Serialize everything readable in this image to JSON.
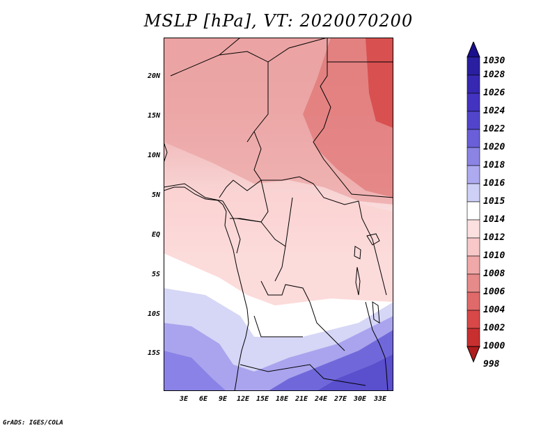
{
  "title": "MSLP [hPa], VT: 2020070200",
  "footer": "GrADS: IGES/COLA",
  "lat_labels": [
    "20N",
    "15N",
    "10N",
    "5N",
    "EQ",
    "5S",
    "10S",
    "15S"
  ],
  "lon_labels": [
    "3E",
    "6E",
    "9E",
    "12E",
    "15E",
    "18E",
    "21E",
    "24E",
    "27E",
    "30E",
    "33E"
  ],
  "colorbar": {
    "levels": [
      "1030",
      "1028",
      "1026",
      "1024",
      "1022",
      "1020",
      "1018",
      "1016",
      "1015",
      "1014",
      "1012",
      "1010",
      "1008",
      "1006",
      "1004",
      "1002",
      "1000",
      "998"
    ],
    "colors": [
      "#1a0f8c",
      "#2a1fa0",
      "#3628b0",
      "#4433c0",
      "#5245cc",
      "#6a5fd8",
      "#8c84e4",
      "#aeaaf0",
      "#cfd0f6",
      "#ffffff",
      "#fce0e0",
      "#f8c8c8",
      "#f0a8a8",
      "#e78a8a",
      "#e06a6a",
      "#d84848",
      "#c83030",
      "#b01c1c"
    ]
  }
}
